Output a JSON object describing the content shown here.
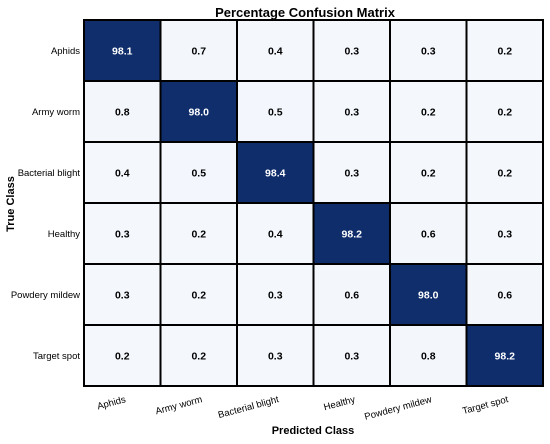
{
  "chart_data": {
    "type": "heatmap",
    "title": "Percentage Confusion Matrix",
    "xlabel": "Predicted Class",
    "ylabel": "True Class",
    "x_categories": [
      "Aphids",
      "Army worm",
      "Bacterial blight",
      "Healthy",
      "Powdery mildew",
      "Target spot"
    ],
    "y_categories": [
      "Aphids",
      "Army worm",
      "Bacterial blight",
      "Healthy",
      "Powdery mildew",
      "Target spot"
    ],
    "values": [
      [
        98.1,
        0.7,
        0.4,
        0.3,
        0.3,
        0.2
      ],
      [
        0.8,
        98.0,
        0.5,
        0.3,
        0.2,
        0.2
      ],
      [
        0.4,
        0.5,
        98.4,
        0.3,
        0.2,
        0.2
      ],
      [
        0.3,
        0.2,
        0.4,
        98.2,
        0.6,
        0.3
      ],
      [
        0.3,
        0.2,
        0.3,
        0.6,
        98.0,
        0.6
      ],
      [
        0.2,
        0.2,
        0.3,
        0.3,
        0.8,
        98.2
      ]
    ],
    "value_format": "0.1f",
    "colors": {
      "high": "#0f2d6b",
      "low": "#f4f8fd",
      "grid": "#000000",
      "text_dark": "#000000",
      "text_light": "#ffffff"
    }
  }
}
